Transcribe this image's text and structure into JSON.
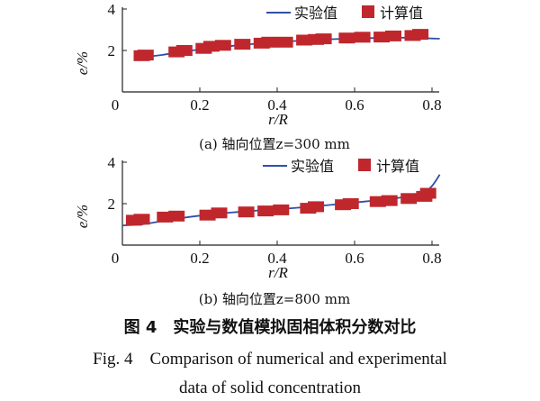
{
  "chart_data": [
    {
      "type": "line",
      "panel": "a",
      "subtitle": "(a) 轴向位置z=300 mm",
      "xlabel": "r/R",
      "ylabel": "e/%",
      "xlim": [
        0,
        0.8
      ],
      "ylim": [
        0,
        4
      ],
      "xticks": [
        "0",
        "0.2",
        "0.4",
        "0.6",
        "0.8"
      ],
      "yticks": [
        "2",
        "4"
      ],
      "legend": {
        "placement": "top-right",
        "line_label": "实验值",
        "marker_label": "计算值"
      },
      "colors": {
        "line": "#2f4fa8",
        "marker": "#c0272d"
      },
      "line": {
        "name": "实验值",
        "x": [
          0.04,
          0.1,
          0.15,
          0.2,
          0.25,
          0.3,
          0.35,
          0.4,
          0.45,
          0.5,
          0.55,
          0.6,
          0.65,
          0.7,
          0.75,
          0.8,
          0.82
        ],
        "y": [
          1.65,
          1.78,
          1.92,
          2.05,
          2.16,
          2.25,
          2.33,
          2.4,
          2.46,
          2.51,
          2.55,
          2.58,
          2.6,
          2.62,
          2.61,
          2.58,
          2.57
        ]
      },
      "markers": {
        "name": "计算值",
        "x": [
          0.05,
          0.06,
          0.14,
          0.16,
          0.21,
          0.23,
          0.26,
          0.31,
          0.36,
          0.38,
          0.42,
          0.47,
          0.5,
          0.52,
          0.58,
          0.62,
          0.67,
          0.7,
          0.75,
          0.77
        ],
        "y": [
          1.75,
          1.78,
          1.93,
          2.0,
          2.1,
          2.2,
          2.25,
          2.3,
          2.35,
          2.4,
          2.4,
          2.5,
          2.53,
          2.56,
          2.6,
          2.64,
          2.65,
          2.7,
          2.72,
          2.78
        ]
      }
    },
    {
      "type": "line",
      "panel": "b",
      "subtitle": "(b) 轴向位置z=800 mm",
      "xlabel": "r/R",
      "ylabel": "e/%",
      "xlim": [
        0,
        0.8
      ],
      "ylim": [
        0,
        4
      ],
      "xticks": [
        "0",
        "0.2",
        "0.4",
        "0.6",
        "0.8"
      ],
      "yticks": [
        "2",
        "4"
      ],
      "legend": {
        "placement": "top-right",
        "line_label": "实验值",
        "marker_label": "计算值"
      },
      "colors": {
        "line": "#2f4fa8",
        "marker": "#c0272d"
      },
      "line": {
        "name": "实验值",
        "x": [
          0.0,
          0.05,
          0.1,
          0.15,
          0.2,
          0.25,
          0.3,
          0.35,
          0.4,
          0.45,
          0.5,
          0.55,
          0.6,
          0.65,
          0.7,
          0.75,
          0.78,
          0.8,
          0.82
        ],
        "y": [
          0.95,
          1.0,
          1.15,
          1.3,
          1.42,
          1.52,
          1.6,
          1.67,
          1.73,
          1.8,
          1.88,
          1.96,
          2.05,
          2.15,
          2.25,
          2.38,
          2.55,
          2.85,
          3.4
        ]
      },
      "markers": {
        "name": "计算值",
        "x": [
          0.03,
          0.05,
          0.11,
          0.14,
          0.22,
          0.25,
          0.32,
          0.37,
          0.41,
          0.48,
          0.5,
          0.57,
          0.59,
          0.66,
          0.69,
          0.74,
          0.78,
          0.79
        ],
        "y": [
          1.2,
          1.25,
          1.35,
          1.4,
          1.45,
          1.55,
          1.6,
          1.65,
          1.7,
          1.78,
          1.85,
          1.95,
          2.0,
          2.1,
          2.15,
          2.25,
          2.35,
          2.5
        ]
      }
    }
  ],
  "caption": {
    "cn": "图 4　实验与数值模拟固相体积分数对比",
    "en_line1": "Fig. 4　Comparison of numerical and experimental",
    "en_line2": "data of solid concentration"
  }
}
